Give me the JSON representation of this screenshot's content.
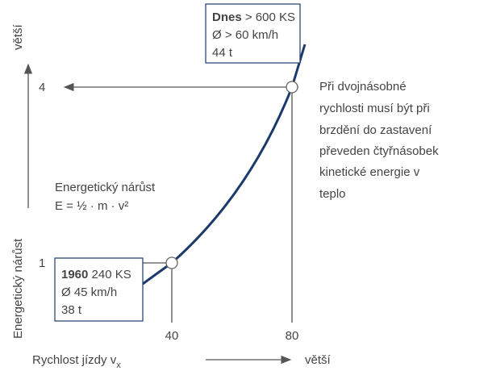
{
  "axis_y": {
    "label": "Energetický nárůst",
    "more": "větší",
    "ticks": [
      "1",
      "4"
    ]
  },
  "axis_x": {
    "label": "Rychlost jízdy v",
    "subscript": "x",
    "more": "větší",
    "ticks": [
      "40",
      "80"
    ]
  },
  "box_today": {
    "bold": "Dnes",
    "line1": "> 600 KS",
    "line2": "Ø > 60 km/h",
    "line3": "44 t"
  },
  "box_1960": {
    "bold": "1960",
    "line1": "240 KS",
    "line2": "Ø 45 km/h",
    "line3": "38 t"
  },
  "formula": {
    "title": "Energetický nárůst",
    "equation": "E = ½ · m · v²"
  },
  "note": [
    "Při dvojnásobné",
    "rychlosti musí být při",
    "brzdění do zastavení",
    "převeden čtyřnásobek",
    "kinetické energie v",
    "teplo"
  ]
}
